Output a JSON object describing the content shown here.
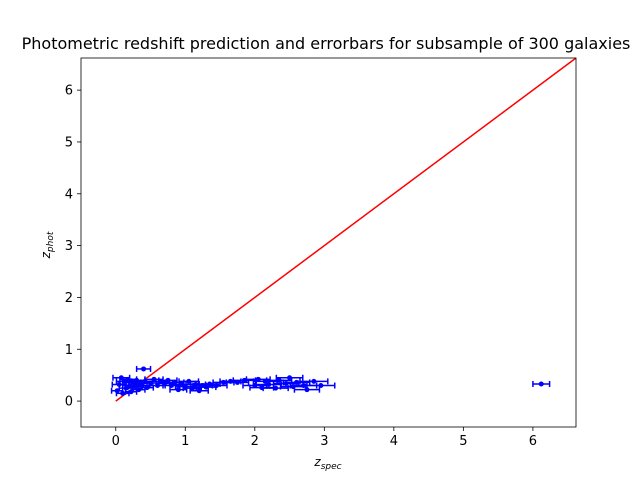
{
  "chart_data": {
    "type": "scatter",
    "title": "Photometric redshift prediction and errorbars for subsample of 300 galaxies",
    "xlabel": {
      "base": "z",
      "sub": "spec"
    },
    "ylabel": {
      "base": "z",
      "sub": "phot"
    },
    "xlim": [
      -0.5,
      6.62
    ],
    "ylim": [
      -0.5,
      6.62
    ],
    "xticks": [
      0,
      1,
      2,
      3,
      4,
      5,
      6
    ],
    "yticks": [
      0,
      1,
      2,
      3,
      4,
      5,
      6
    ],
    "grid": false,
    "colors": {
      "points": "#0000ff",
      "reference_line": "#ff0000",
      "axes": "#000000"
    },
    "reference_line": {
      "x": [
        0,
        6.62
      ],
      "y": [
        0,
        6.62
      ]
    },
    "series": [
      {
        "points": [
          {
            "x": 0.02,
            "y": 0.2,
            "xerr": 0.08
          },
          {
            "x": 0.05,
            "y": 0.32,
            "xerr": 0.1
          },
          {
            "x": 0.08,
            "y": 0.45,
            "xerr": 0.12
          },
          {
            "x": 0.1,
            "y": 0.15,
            "xerr": 0.09
          },
          {
            "x": 0.12,
            "y": 0.38,
            "xerr": 0.11
          },
          {
            "x": 0.15,
            "y": 0.25,
            "xerr": 0.1
          },
          {
            "x": 0.18,
            "y": 0.42,
            "xerr": 0.12
          },
          {
            "x": 0.2,
            "y": 0.3,
            "xerr": 0.1
          },
          {
            "x": 0.22,
            "y": 0.18,
            "xerr": 0.08
          },
          {
            "x": 0.25,
            "y": 0.36,
            "xerr": 0.11
          },
          {
            "x": 0.28,
            "y": 0.28,
            "xerr": 0.1
          },
          {
            "x": 0.3,
            "y": 0.4,
            "xerr": 0.12
          },
          {
            "x": 0.33,
            "y": 0.22,
            "xerr": 0.09
          },
          {
            "x": 0.35,
            "y": 0.34,
            "xerr": 0.1
          },
          {
            "x": 0.38,
            "y": 0.3,
            "xerr": 0.1
          },
          {
            "x": 0.4,
            "y": 0.62,
            "xerr": 0.1
          },
          {
            "x": 0.42,
            "y": 0.38,
            "xerr": 0.11
          },
          {
            "x": 0.45,
            "y": 0.26,
            "xerr": 0.09
          },
          {
            "x": 0.5,
            "y": 0.35,
            "xerr": 0.12
          },
          {
            "x": 0.55,
            "y": 0.42,
            "xerr": 0.13
          },
          {
            "x": 0.6,
            "y": 0.3,
            "xerr": 0.11
          },
          {
            "x": 0.65,
            "y": 0.38,
            "xerr": 0.12
          },
          {
            "x": 0.7,
            "y": 0.34,
            "xerr": 0.12
          },
          {
            "x": 0.75,
            "y": 0.4,
            "xerr": 0.13
          },
          {
            "x": 0.8,
            "y": 0.3,
            "xerr": 0.12
          },
          {
            "x": 0.85,
            "y": 0.36,
            "xerr": 0.13
          },
          {
            "x": 0.9,
            "y": 0.22,
            "xerr": 0.12
          },
          {
            "x": 0.95,
            "y": 0.32,
            "xerr": 0.13
          },
          {
            "x": 1.0,
            "y": 0.28,
            "xerr": 0.14
          },
          {
            "x": 1.05,
            "y": 0.38,
            "xerr": 0.14
          },
          {
            "x": 1.1,
            "y": 0.25,
            "xerr": 0.13
          },
          {
            "x": 1.15,
            "y": 0.32,
            "xerr": 0.14
          },
          {
            "x": 1.2,
            "y": 0.2,
            "xerr": 0.13
          },
          {
            "x": 1.25,
            "y": 0.3,
            "xerr": 0.14
          },
          {
            "x": 1.3,
            "y": 0.27,
            "xerr": 0.14
          },
          {
            "x": 1.35,
            "y": 0.33,
            "xerr": 0.15
          },
          {
            "x": 1.45,
            "y": 0.3,
            "xerr": 0.15
          },
          {
            "x": 1.55,
            "y": 0.36,
            "xerr": 0.15
          },
          {
            "x": 1.65,
            "y": 0.38,
            "xerr": 0.15
          },
          {
            "x": 1.75,
            "y": 0.36,
            "xerr": 0.16
          },
          {
            "x": 1.85,
            "y": 0.4,
            "xerr": 0.16
          },
          {
            "x": 2.0,
            "y": 0.3,
            "xerr": 0.17
          },
          {
            "x": 2.05,
            "y": 0.42,
            "xerr": 0.17
          },
          {
            "x": 2.1,
            "y": 0.26,
            "xerr": 0.17
          },
          {
            "x": 2.15,
            "y": 0.38,
            "xerr": 0.17
          },
          {
            "x": 2.2,
            "y": 0.32,
            "xerr": 0.18
          },
          {
            "x": 2.3,
            "y": 0.25,
            "xerr": 0.18
          },
          {
            "x": 2.35,
            "y": 0.4,
            "xerr": 0.18
          },
          {
            "x": 2.45,
            "y": 0.34,
            "xerr": 0.18
          },
          {
            "x": 2.5,
            "y": 0.45,
            "xerr": 0.19
          },
          {
            "x": 2.55,
            "y": 0.28,
            "xerr": 0.18
          },
          {
            "x": 2.6,
            "y": 0.36,
            "xerr": 0.19
          },
          {
            "x": 2.7,
            "y": 0.3,
            "xerr": 0.19
          },
          {
            "x": 2.75,
            "y": 0.22,
            "xerr": 0.18
          },
          {
            "x": 2.85,
            "y": 0.38,
            "xerr": 0.2
          },
          {
            "x": 2.95,
            "y": 0.3,
            "xerr": 0.2
          },
          {
            "x": 6.12,
            "y": 0.33,
            "xerr": 0.12
          }
        ]
      }
    ]
  }
}
